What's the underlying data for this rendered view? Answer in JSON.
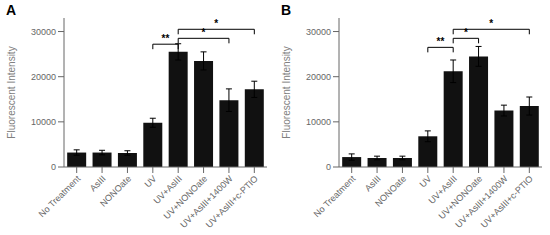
{
  "chart_data": [
    {
      "type": "bar",
      "title": "A",
      "categories": [
        "No Treatment",
        "AsIII",
        "NONOate",
        "UV",
        "UV+AsIII",
        "UV+NONOate",
        "UV+AsIII+1400W",
        "UV+AsIII+c-PTIO"
      ],
      "values": [
        3200,
        3200,
        3100,
        9800,
        25500,
        23500,
        14800,
        17200
      ],
      "errors": [
        600,
        500,
        500,
        1000,
        1800,
        2000,
        2500,
        1800
      ],
      "color": "#111111",
      "ylabel": "Fluorescent Intensity",
      "ylim": [
        0,
        33000
      ],
      "yticks": [
        0,
        10000,
        20000,
        30000
      ],
      "annotations": [
        {
          "x1": "UV+AsIII",
          "x2": "UV+AsIII+c-PTIO",
          "y": 30500,
          "text": "*"
        },
        {
          "x1": "UV+AsIII",
          "x2": "UV+AsIII+1400W",
          "y": 28500,
          "text": "*"
        },
        {
          "x1": "UV",
          "x2": "UV+AsIII",
          "y": 27200,
          "text": "**"
        }
      ]
    },
    {
      "type": "bar",
      "title": "B",
      "categories": [
        "No Treatment",
        "AsIII",
        "NONOate",
        "UV",
        "UV+AsIII",
        "UV+NONOate",
        "UV+AsIII+1400W",
        "UV+AsIII+c-PTIO"
      ],
      "values": [
        2200,
        2000,
        2000,
        6800,
        21200,
        24500,
        12500,
        13500
      ],
      "errors": [
        700,
        400,
        400,
        1200,
        2500,
        2200,
        1200,
        2000
      ],
      "color": "#111111",
      "ylabel": "Fluorescent Intensity",
      "ylim": [
        0,
        33000
      ],
      "yticks": [
        0,
        10000,
        20000,
        30000
      ],
      "annotations": [
        {
          "x1": "UV+AsIII",
          "x2": "UV+AsIII+c-PTIO",
          "y": 30500,
          "text": "*"
        },
        {
          "x1": "UV+AsIII",
          "x2": "UV+NONOate",
          "y": 28500,
          "text": "*"
        },
        {
          "x1": "UV",
          "x2": "UV+AsIII",
          "y": 26500,
          "text": "**"
        }
      ]
    }
  ]
}
